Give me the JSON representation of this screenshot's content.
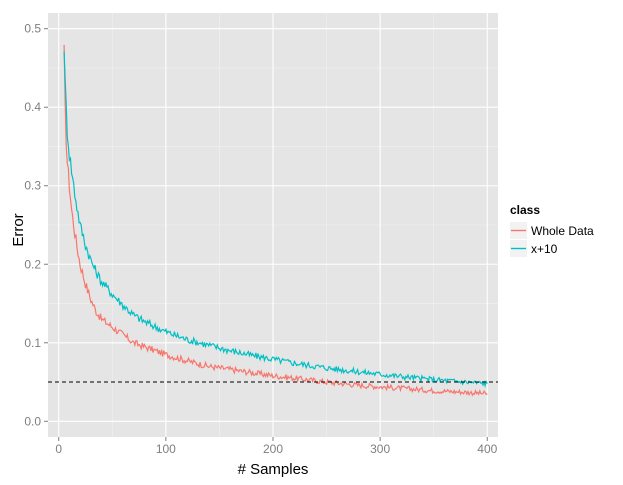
{
  "chart_data": {
    "type": "line",
    "xlabel": "# Samples",
    "ylabel": "Error",
    "xlim": [
      -10,
      410
    ],
    "ylim": [
      -0.02,
      0.52
    ],
    "x_ticks": [
      0,
      100,
      200,
      300,
      400
    ],
    "y_ticks": [
      0.0,
      0.1,
      0.2,
      0.3,
      0.4,
      0.5
    ],
    "x_tick_labels": [
      "0",
      "100",
      "200",
      "300",
      "400"
    ],
    "y_tick_labels": [
      "0.0",
      "0.1",
      "0.2",
      "0.3",
      "0.4",
      "0.5"
    ],
    "grid": true,
    "legend": {
      "title": "class",
      "position": "right"
    },
    "reference_line": {
      "y": 0.05,
      "style": "dashed",
      "color": "#000000"
    },
    "series": [
      {
        "name": "Whole Data",
        "color": "#F8766D",
        "x": [
          5,
          6,
          7,
          8,
          10,
          12,
          15,
          18,
          20,
          25,
          30,
          35,
          40,
          50,
          60,
          70,
          80,
          100,
          120,
          140,
          160,
          180,
          200,
          220,
          250,
          280,
          300,
          320,
          350,
          380,
          400
        ],
        "y": [
          0.47,
          0.4,
          0.36,
          0.33,
          0.3,
          0.27,
          0.24,
          0.215,
          0.2,
          0.175,
          0.155,
          0.14,
          0.13,
          0.12,
          0.11,
          0.1,
          0.095,
          0.085,
          0.077,
          0.07,
          0.066,
          0.062,
          0.058,
          0.055,
          0.05,
          0.046,
          0.044,
          0.042,
          0.039,
          0.037,
          0.035
        ]
      },
      {
        "name": "x+10",
        "color": "#00BFC4",
        "x": [
          5,
          6,
          7,
          8,
          10,
          12,
          15,
          18,
          20,
          25,
          30,
          35,
          40,
          50,
          60,
          70,
          80,
          100,
          120,
          140,
          160,
          180,
          200,
          220,
          250,
          280,
          300,
          320,
          350,
          380,
          400
        ],
        "y": [
          0.48,
          0.43,
          0.4,
          0.37,
          0.34,
          0.32,
          0.29,
          0.265,
          0.25,
          0.225,
          0.205,
          0.19,
          0.178,
          0.162,
          0.148,
          0.135,
          0.127,
          0.114,
          0.104,
          0.097,
          0.09,
          0.084,
          0.079,
          0.074,
          0.068,
          0.063,
          0.06,
          0.057,
          0.053,
          0.05,
          0.048
        ]
      }
    ]
  }
}
